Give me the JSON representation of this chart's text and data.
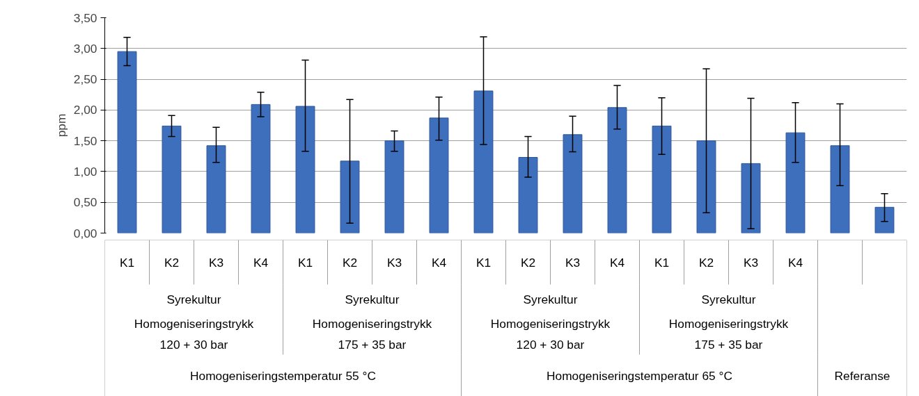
{
  "chart_data": {
    "type": "bar",
    "ylabel": "ppm",
    "categories": [
      "K1",
      "K2",
      "K3",
      "K4",
      "K1",
      "K2",
      "K3",
      "K4",
      "K1",
      "K2",
      "K3",
      "K4",
      "K1",
      "K2",
      "K3",
      "K4",
      null,
      null
    ],
    "values": [
      2.95,
      1.74,
      1.42,
      2.09,
      2.06,
      1.17,
      1.5,
      1.87,
      2.31,
      1.23,
      1.6,
      2.04,
      1.74,
      1.5,
      1.13,
      1.63,
      1.42,
      0.42
    ],
    "errors": [
      [
        2.72,
        3.18
      ],
      [
        1.57,
        1.91
      ],
      [
        1.15,
        1.72
      ],
      [
        1.89,
        2.29
      ],
      [
        1.33,
        2.81
      ],
      [
        0.16,
        2.17
      ],
      [
        1.33,
        1.66
      ],
      [
        1.51,
        2.21
      ],
      [
        1.44,
        3.19
      ],
      [
        0.91,
        1.57
      ],
      [
        1.32,
        1.9
      ],
      [
        1.69,
        2.4
      ],
      [
        1.28,
        2.2
      ],
      [
        0.33,
        2.67
      ],
      [
        0.07,
        2.19
      ],
      [
        1.15,
        2.12
      ],
      [
        0.77,
        2.1
      ],
      [
        0.19,
        0.64
      ]
    ],
    "color": "#3d6fbd",
    "ylim": [
      0,
      3.5
    ],
    "yticks": [
      {
        "value": 0,
        "label": "0,00"
      },
      {
        "value": 0.5,
        "label": "0,50"
      },
      {
        "value": 1,
        "label": "1,00"
      },
      {
        "value": 1.5,
        "label": "1,50"
      },
      {
        "value": 2,
        "label": "2,00"
      },
      {
        "value": 2.5,
        "label": "2,50"
      },
      {
        "value": 3,
        "label": "3,00"
      },
      {
        "value": 3.5,
        "label": "3,50"
      }
    ],
    "grid": "y",
    "annotations": [
      "Syrekultur",
      "Syrekultur",
      "Syrekultur",
      "Syrekultur",
      "Homogeniseringstrykk\n120 + 30 bar",
      "Homogeniseringstrykk\n175 + 35 bar",
      "Homogeniseringstrykk\n120 + 30 bar",
      "Homogeniseringstrykk\n175 + 35 bar",
      "Homogeniseringstemperatur 55 °C",
      "Homogeniseringstemperatur 65 °C",
      "Referanse"
    ]
  }
}
